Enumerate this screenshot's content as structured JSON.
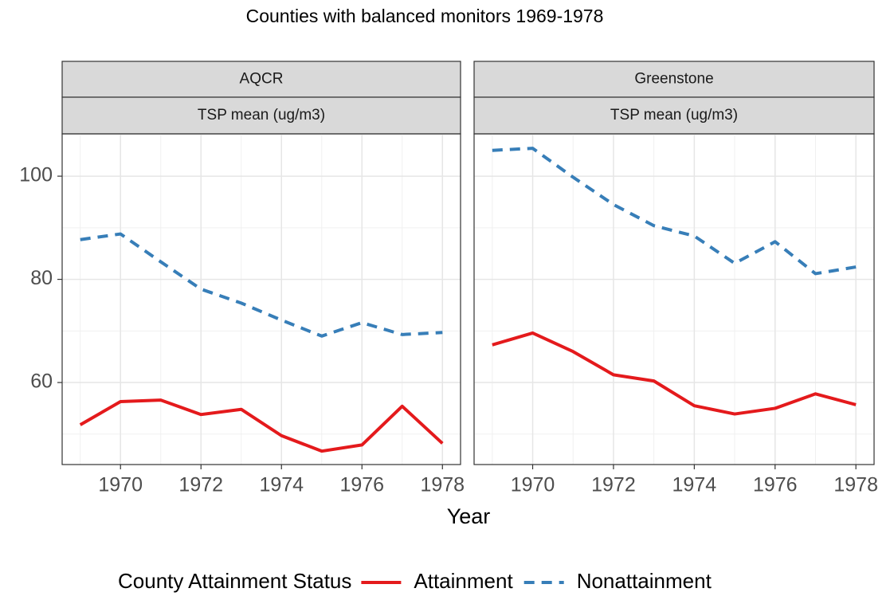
{
  "chart_data": {
    "type": "line",
    "title": "Counties with balanced monitors 1969-1978",
    "x_label": "Year",
    "legend_title": "County Attainment Status",
    "legend_position": "bottom",
    "grid": true,
    "x": [
      1969,
      1970,
      1971,
      1972,
      1973,
      1974,
      1975,
      1976,
      1977,
      1978
    ],
    "xlim": [
      1968.55,
      1978.45
    ],
    "xticks": [
      1970,
      1972,
      1974,
      1976,
      1978
    ],
    "ylim": [
      44.1,
      108.2
    ],
    "yticks": [
      60,
      80,
      100
    ],
    "series": [
      {
        "name": "Attainment",
        "color": "#e41a1c",
        "dash": "solid"
      },
      {
        "name": "Nonattainment",
        "color": "#377eb8",
        "dash": "dashed"
      }
    ],
    "panels": [
      {
        "strip": "AQCR",
        "substrip": "TSP mean (ug/m3)",
        "series_values": [
          [
            51.8,
            56.3,
            56.6,
            53.8,
            54.8,
            49.7,
            46.7,
            47.9,
            55.4,
            48.2
          ],
          [
            87.7,
            88.8,
            83.4,
            78.1,
            75.4,
            72.1,
            69.0,
            71.6,
            69.3,
            69.7
          ]
        ]
      },
      {
        "strip": "Greenstone",
        "substrip": "TSP mean (ug/m3)",
        "series_values": [
          [
            67.3,
            69.6,
            66.0,
            61.5,
            60.3,
            55.5,
            53.9,
            55.0,
            57.8,
            55.7
          ],
          [
            105.0,
            105.4,
            99.8,
            94.5,
            90.4,
            88.4,
            83.1,
            87.3,
            81.1,
            82.4
          ]
        ]
      }
    ]
  }
}
